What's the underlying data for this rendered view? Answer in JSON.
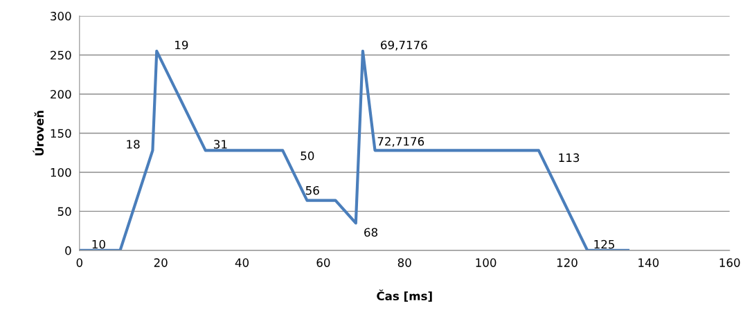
{
  "chart_data": {
    "type": "line",
    "xlabel": "Čas [ms]",
    "ylabel": "Úroveň",
    "x": [
      0,
      10,
      18,
      19,
      31,
      50,
      56,
      63,
      68,
      69.7176,
      72.7176,
      113,
      125,
      135
    ],
    "values": [
      0,
      0,
      128,
      255,
      128,
      128,
      64,
      64,
      35,
      255,
      128,
      128,
      0,
      0
    ],
    "color": "#4a7ebb",
    "xlim": [
      0,
      160
    ],
    "xticks": [
      0,
      20,
      40,
      60,
      80,
      100,
      120,
      140,
      160
    ],
    "ylim": [
      0,
      300
    ],
    "yticks": [
      0,
      50,
      100,
      150,
      200,
      250,
      300
    ],
    "grid": "y",
    "marker": "none",
    "line_style": "solid",
    "legend": false,
    "annotations": [
      {
        "text": "10",
        "x": 10,
        "y": 0
      },
      {
        "text": "18",
        "x": 18,
        "y": 128
      },
      {
        "text": "19",
        "x": 19,
        "y": 255
      },
      {
        "text": "31",
        "x": 31,
        "y": 128
      },
      {
        "text": "50",
        "x": 50,
        "y": 128
      },
      {
        "text": "56",
        "x": 56,
        "y": 64
      },
      {
        "text": "68",
        "x": 68,
        "y": 35
      },
      {
        "text": "69,7176",
        "x": 69.7176,
        "y": 255
      },
      {
        "text": "72,7176",
        "x": 72.7176,
        "y": 128
      },
      {
        "text": "113",
        "x": 113,
        "y": 128
      },
      {
        "text": "125",
        "x": 125,
        "y": 0
      }
    ]
  }
}
